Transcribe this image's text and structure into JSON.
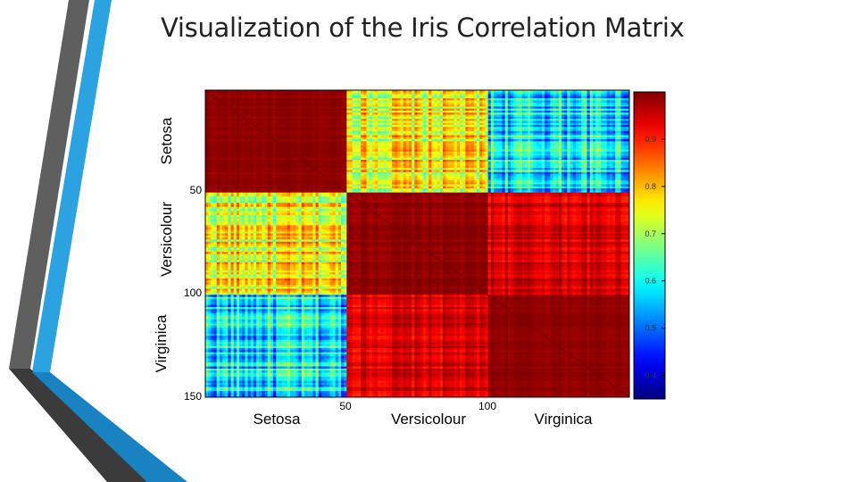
{
  "slide": {
    "title": "Visualization of the Iris Correlation Matrix"
  },
  "theme": {
    "accent_blue": "#2aa3e0",
    "accent_dark": "#444444",
    "accent_gray": "#6d6d6d"
  },
  "chart_data": {
    "type": "heatmap",
    "colormap": "jet",
    "n": 150,
    "groups": [
      {
        "name": "Setosa",
        "start": 1,
        "end": 50
      },
      {
        "name": "Versicolour",
        "start": 51,
        "end": 100
      },
      {
        "name": "Virginica",
        "start": 101,
        "end": 150
      }
    ],
    "block_mean_correlation": [
      [
        0.99,
        0.75,
        0.58
      ],
      [
        0.75,
        0.99,
        0.94
      ],
      [
        0.58,
        0.94,
        0.99
      ]
    ],
    "y_tick_labels": [
      "50",
      "100",
      "150"
    ],
    "x_tick_labels": [
      "50",
      "100"
    ],
    "x_group_labels": [
      "Setosa",
      "Versicolour",
      "Virginica"
    ],
    "y_group_labels": [
      "Setosa",
      "Versicolour",
      "Virginica"
    ],
    "colorbar": {
      "min": 0.35,
      "max": 1.0,
      "ticks": [
        "0.4",
        "0.5",
        "0.6",
        "0.7",
        "0.8",
        "0.9"
      ]
    }
  }
}
